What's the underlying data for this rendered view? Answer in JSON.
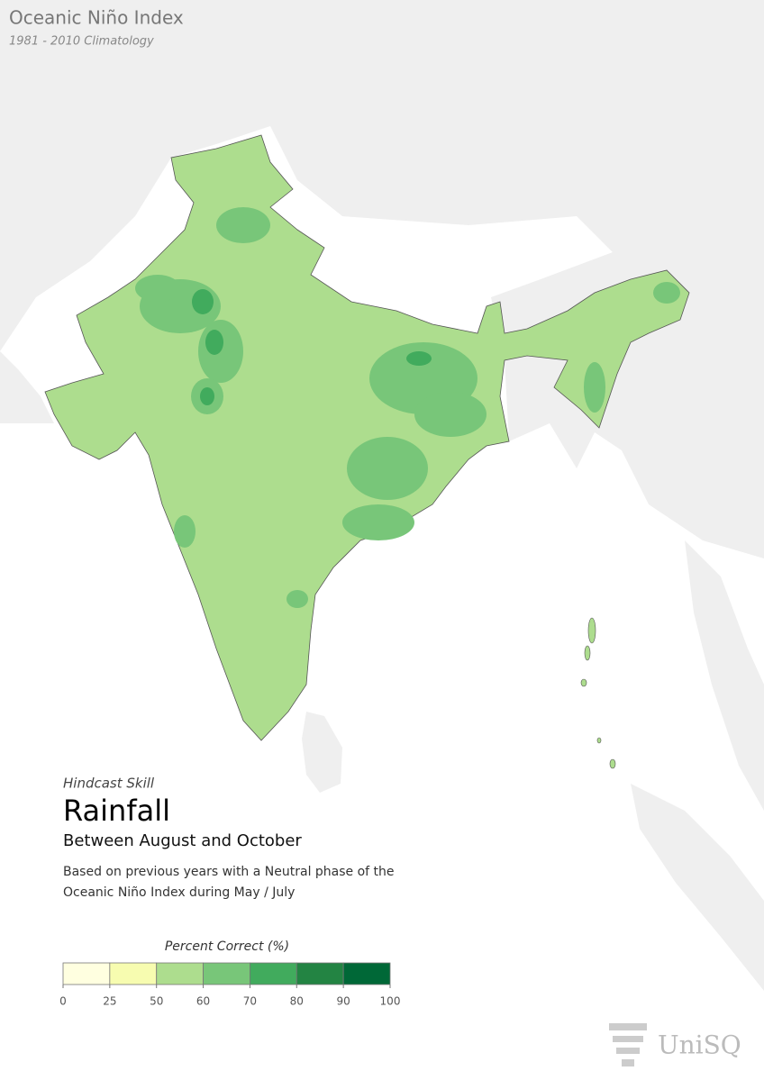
{
  "header": {
    "title": "Oceanic Niño Index",
    "subtitle": "1981 - 2010 Climatology"
  },
  "caption": {
    "kicker": "Hindcast Skill",
    "title": "Rainfall",
    "period": "Between August and October",
    "description": [
      "Based on previous years with a Neutral phase of the",
      "Oceanic Niño Index during May / July"
    ]
  },
  "legend": {
    "title": "Percent Correct (%)",
    "ticks": [
      0,
      25,
      50,
      60,
      70,
      80,
      90,
      100
    ],
    "colors": [
      "#ffffe0",
      "#f7fcb0",
      "#addd8e",
      "#78c679",
      "#41ab5d",
      "#238443",
      "#006837"
    ]
  },
  "logo": {
    "text": "UniSQ"
  }
}
